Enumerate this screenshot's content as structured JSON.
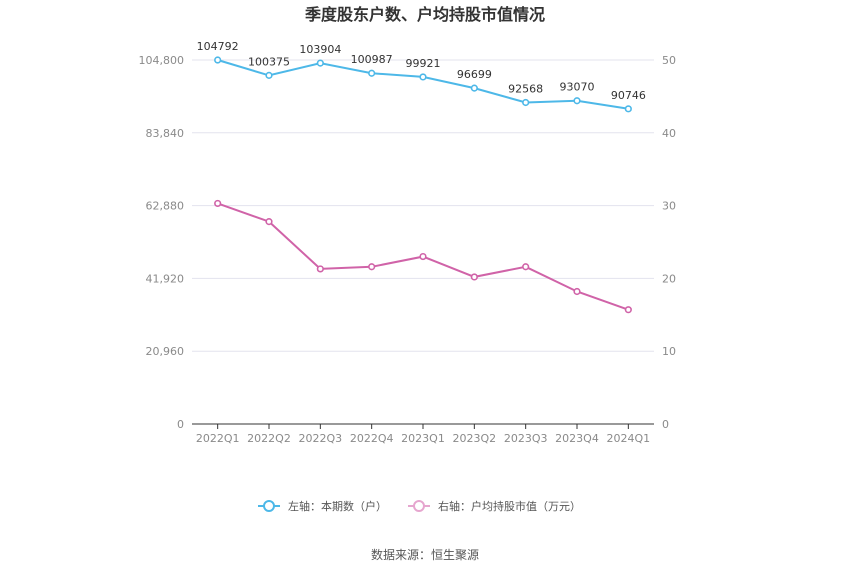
{
  "chart_data": {
    "type": "line",
    "title": "季度股东户数、户均持股市值情况",
    "categories": [
      "2022Q1",
      "2022Q2",
      "2022Q3",
      "2022Q4",
      "2023Q1",
      "2023Q2",
      "2023Q3",
      "2023Q4",
      "2024Q1"
    ],
    "left_axis": {
      "ylim": [
        0,
        104800
      ],
      "ticks": [
        0,
        20960,
        41920,
        62880,
        83840,
        104800
      ],
      "tick_labels": [
        "0",
        "20,960",
        "41,920",
        "62,880",
        "83,840",
        "104,800"
      ]
    },
    "right_axis": {
      "ylim": [
        0,
        50
      ],
      "ticks": [
        0,
        10,
        20,
        30,
        40,
        50
      ],
      "tick_labels": [
        "0",
        "10",
        "20",
        "30",
        "40",
        "50"
      ]
    },
    "series": [
      {
        "name": "左轴：本期数（户）",
        "axis": "left",
        "color": "#4db8e8",
        "values": [
          104792,
          100375,
          103904,
          100987,
          99921,
          96699,
          92568,
          93070,
          90746
        ],
        "labels": [
          "104792",
          "100375",
          "103904",
          "100987",
          "99921",
          "96699",
          "92568",
          "93070",
          "90746"
        ]
      },
      {
        "name": "右轴：户均持股市值（万元）",
        "axis": "right",
        "color": "#d063a8",
        "values": [
          30.3,
          27.8,
          21.3,
          21.6,
          23.0,
          20.2,
          21.6,
          18.2,
          15.7
        ]
      }
    ],
    "grid": true,
    "legend_position": "bottom"
  },
  "footer": {
    "source": "数据来源：恒生聚源"
  },
  "colors": {
    "grid": "#e3e3ee",
    "axis": "#333333",
    "tick_text": "#8a8a8a"
  }
}
